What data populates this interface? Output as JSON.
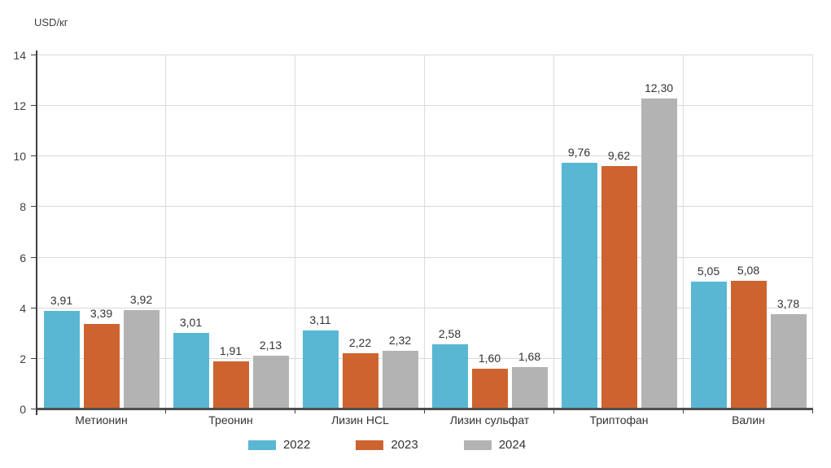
{
  "chart_data": {
    "type": "bar",
    "title": "",
    "ylabel": "USD/кг",
    "xlabel": "",
    "categories": [
      "Метионин",
      "Треонин",
      "Лизин HCL",
      "Лизин сульфат",
      "Триптофан",
      "Валин"
    ],
    "series": [
      {
        "name": "2022",
        "color": "#5ab7d4",
        "values": [
          3.91,
          3.01,
          3.11,
          2.58,
          9.76,
          5.05
        ],
        "value_labels": [
          "3,91",
          "3,01",
          "3,11",
          "2,58",
          "9,76",
          "5,05"
        ]
      },
      {
        "name": "2023",
        "color": "#cd6430",
        "values": [
          3.39,
          1.91,
          2.22,
          1.6,
          9.62,
          5.08
        ],
        "value_labels": [
          "3,39",
          "1,91",
          "2,22",
          "1,60",
          "9,62",
          "5,08"
        ]
      },
      {
        "name": "2024",
        "color": "#b3b3b3",
        "values": [
          3.92,
          2.13,
          2.32,
          1.68,
          12.3,
          3.78
        ],
        "value_labels": [
          "3,92",
          "2,13",
          "2,32",
          "1,68",
          "12,30",
          "3,78"
        ]
      }
    ],
    "ylim": [
      0,
      14
    ],
    "yticks": [
      0,
      2,
      4,
      6,
      8,
      10,
      12,
      14
    ],
    "ytick_labels": [
      "0",
      "2",
      "4",
      "6",
      "8",
      "10",
      "12",
      "14"
    ],
    "grid": true,
    "legend_position": "bottom",
    "decimal_separator": ",",
    "colors": {
      "gridline": "#d9d9d9",
      "axis": "#404040",
      "baseline": "#4f4f4f",
      "text": "#333333"
    }
  }
}
